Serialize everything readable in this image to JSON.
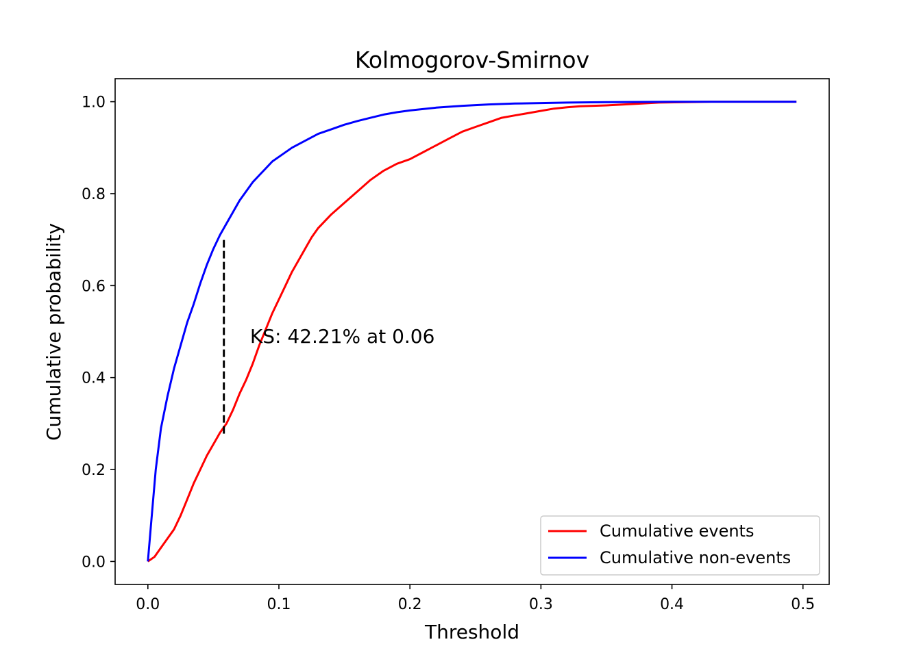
{
  "chart_data": {
    "type": "line",
    "title": "Kolmogorov-Smirnov",
    "xlabel": "Threshold",
    "ylabel": "Cumulative probability",
    "xlim": [
      -0.025,
      0.52
    ],
    "ylim": [
      -0.05,
      1.05
    ],
    "xticks": [
      0.0,
      0.1,
      0.2,
      0.3,
      0.4,
      0.5
    ],
    "xtick_labels": [
      "0.0",
      "0.1",
      "0.2",
      "0.3",
      "0.4",
      "0.5"
    ],
    "yticks": [
      0.0,
      0.2,
      0.4,
      0.6,
      0.8,
      1.0
    ],
    "ytick_labels": [
      "0.0",
      "0.2",
      "0.4",
      "0.6",
      "0.8",
      "1.0"
    ],
    "grid": false,
    "legend_position": "lower-right",
    "series": [
      {
        "name": "Cumulative events",
        "color": "#ff0000",
        "x": [
          0.0,
          0.005,
          0.01,
          0.015,
          0.02,
          0.025,
          0.03,
          0.035,
          0.04,
          0.045,
          0.05,
          0.055,
          0.06,
          0.065,
          0.07,
          0.075,
          0.08,
          0.085,
          0.09,
          0.095,
          0.1,
          0.105,
          0.11,
          0.115,
          0.12,
          0.125,
          0.13,
          0.14,
          0.15,
          0.16,
          0.17,
          0.18,
          0.19,
          0.2,
          0.21,
          0.22,
          0.23,
          0.24,
          0.25,
          0.26,
          0.27,
          0.28,
          0.29,
          0.3,
          0.31,
          0.32,
          0.33,
          0.35,
          0.37,
          0.39,
          0.41,
          0.43,
          0.45,
          0.47,
          0.495
        ],
        "y": [
          0.0,
          0.01,
          0.03,
          0.05,
          0.07,
          0.1,
          0.135,
          0.17,
          0.2,
          0.23,
          0.255,
          0.28,
          0.3,
          0.33,
          0.365,
          0.395,
          0.43,
          0.47,
          0.505,
          0.54,
          0.57,
          0.6,
          0.63,
          0.655,
          0.68,
          0.705,
          0.725,
          0.755,
          0.78,
          0.805,
          0.83,
          0.85,
          0.865,
          0.875,
          0.89,
          0.905,
          0.92,
          0.935,
          0.945,
          0.955,
          0.965,
          0.97,
          0.975,
          0.98,
          0.985,
          0.988,
          0.99,
          0.992,
          0.995,
          0.998,
          0.999,
          1.0,
          1.0,
          1.0,
          1.0
        ]
      },
      {
        "name": "Cumulative non-events",
        "color": "#0000ff",
        "x": [
          0.0,
          0.003,
          0.006,
          0.01,
          0.015,
          0.02,
          0.025,
          0.03,
          0.035,
          0.04,
          0.045,
          0.05,
          0.055,
          0.06,
          0.065,
          0.07,
          0.075,
          0.08,
          0.085,
          0.09,
          0.095,
          0.1,
          0.11,
          0.12,
          0.13,
          0.14,
          0.15,
          0.16,
          0.17,
          0.18,
          0.19,
          0.2,
          0.22,
          0.24,
          0.26,
          0.28,
          0.3,
          0.32,
          0.35,
          0.4,
          0.45,
          0.495
        ],
        "y": [
          0.0,
          0.1,
          0.2,
          0.29,
          0.36,
          0.42,
          0.47,
          0.52,
          0.56,
          0.605,
          0.645,
          0.68,
          0.71,
          0.735,
          0.76,
          0.785,
          0.805,
          0.825,
          0.84,
          0.855,
          0.87,
          0.88,
          0.9,
          0.915,
          0.93,
          0.94,
          0.95,
          0.958,
          0.965,
          0.972,
          0.977,
          0.981,
          0.987,
          0.991,
          0.994,
          0.996,
          0.997,
          0.998,
          0.999,
          1.0,
          1.0,
          1.0
        ]
      }
    ],
    "ks_line": {
      "x": 0.058,
      "y_low": 0.278,
      "y_high": 0.7,
      "color": "#000000"
    },
    "annotation": {
      "text": "KS: 42.21% at 0.06",
      "x": 0.078,
      "y": 0.49
    }
  }
}
